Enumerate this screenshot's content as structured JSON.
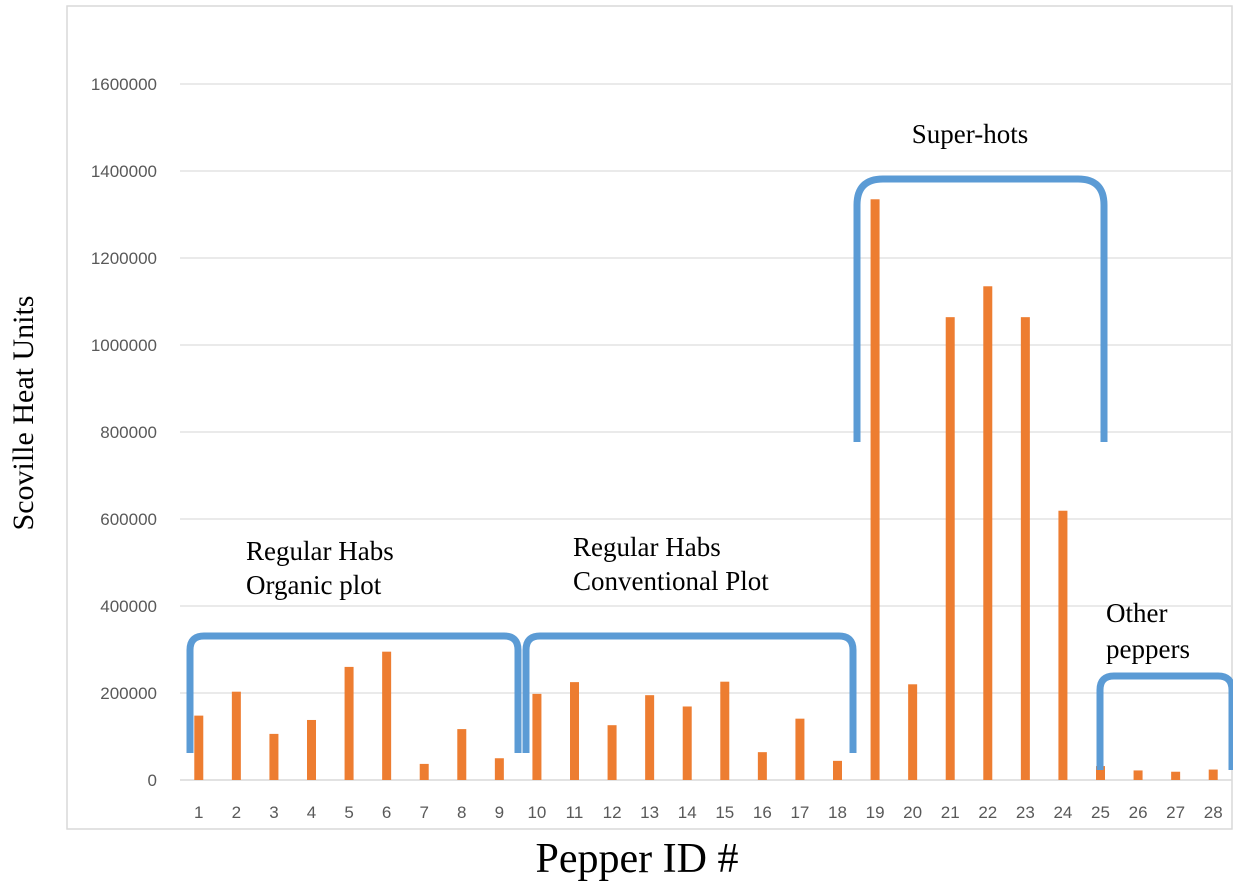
{
  "chart_data": {
    "type": "bar",
    "title": "",
    "xlabel": "Pepper ID #",
    "ylabel": "Scoville Heat Units",
    "categories": [
      "1",
      "2",
      "3",
      "4",
      "5",
      "6",
      "7",
      "8",
      "9",
      "10",
      "11",
      "12",
      "13",
      "14",
      "15",
      "16",
      "17",
      "18",
      "19",
      "20",
      "21",
      "22",
      "23",
      "24",
      "25",
      "26",
      "27",
      "28"
    ],
    "values": [
      148000,
      203000,
      106000,
      138000,
      260000,
      295000,
      37000,
      117000,
      50000,
      198000,
      225000,
      126000,
      195000,
      169000,
      226000,
      64000,
      141000,
      44000,
      1335000,
      220000,
      1064000,
      1135000,
      1064000,
      619000,
      32000,
      22000,
      19000,
      24000
    ],
    "ylim": [
      0,
      1600000
    ],
    "yticks": [
      "0",
      "200000",
      "400000",
      "600000",
      "800000",
      "1000000",
      "1200000",
      "1400000",
      "1600000"
    ],
    "grid": true,
    "bar_color": "#ED7D31",
    "bracket_color": "#5B9BD5",
    "annotations": [
      {
        "lines": [
          "Regular Habs",
          "Organic plot"
        ],
        "range": [
          "1",
          "9"
        ]
      },
      {
        "lines": [
          "Regular Habs",
          "Conventional Plot"
        ],
        "range": [
          "10",
          "18"
        ]
      },
      {
        "lines": [
          "Super-hots"
        ],
        "range": [
          "19",
          "24"
        ]
      },
      {
        "lines": [
          "Other",
          "peppers"
        ],
        "range": [
          "25",
          "28"
        ]
      }
    ]
  }
}
